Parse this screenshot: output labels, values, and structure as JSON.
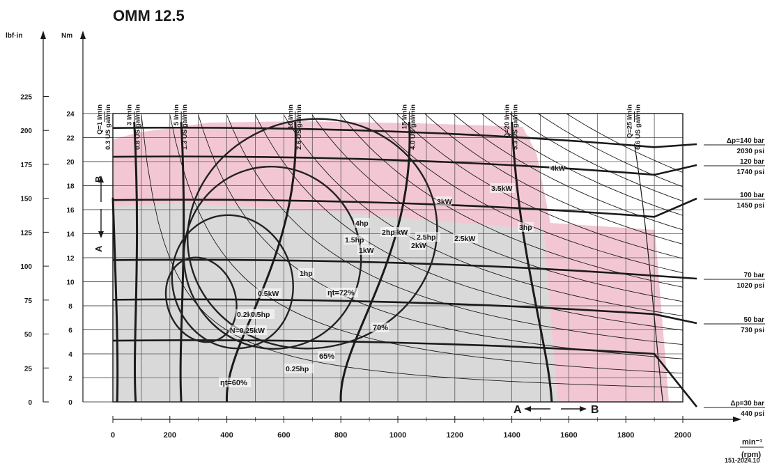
{
  "title": "OMM 12.5",
  "doc_number": "151-2024.10",
  "colors": {
    "region_pink": "#f2c7d3",
    "region_grey": "#d9d9d9",
    "ink": "#1a1a1a",
    "efficiency_line": "#222222"
  },
  "left_axis": {
    "unit": "lbf·in",
    "ticks": [
      "0",
      "25",
      "50",
      "75",
      "100",
      "125",
      "150",
      "175",
      "200",
      "225"
    ]
  },
  "torque_axis": {
    "unit": "Nm",
    "ticks": [
      "0",
      "2",
      "4",
      "6",
      "8",
      "10",
      "12",
      "14",
      "16",
      "18",
      "20",
      "22",
      "24"
    ]
  },
  "speed_axis": {
    "unit_top": "min⁻¹",
    "unit_bottom": "(rpm)",
    "ticks": [
      "0",
      "200",
      "400",
      "600",
      "800",
      "1000",
      "1200",
      "1400",
      "1600",
      "1800",
      "2000"
    ]
  },
  "flow_lines": [
    {
      "top": "Q=1 l/min",
      "bottom": "0.3 US gal/min"
    },
    {
      "top": "3 l/min",
      "bottom": "0.8 US gal/min"
    },
    {
      "top": "5 l/min",
      "bottom": "1.3 US gal/min"
    },
    {
      "top": "10 l/min",
      "bottom": "2.6 US gal/min"
    },
    {
      "top": "15 l/min",
      "bottom": "4.0 US gal/min"
    },
    {
      "top": "Q=20 l/min",
      "bottom": "5.3 US gal/min"
    },
    {
      "top": "Q=25 l/min",
      "bottom": "6.6 US gal/min"
    }
  ],
  "pressure_lines": [
    {
      "bar": "Δp=140 bar",
      "psi": "2030 psi"
    },
    {
      "bar": "120 bar",
      "psi": "1740 psi"
    },
    {
      "bar": "100 bar",
      "psi": "1450 psi"
    },
    {
      "bar": "70 bar",
      "psi": "1020 psi"
    },
    {
      "bar": "50 bar",
      "psi": "730 psi"
    },
    {
      "bar": "Δp=30 bar",
      "psi": "440 psi"
    }
  ],
  "power_labels": [
    "4kW",
    "3.5kW",
    "3kW",
    "2.5kW",
    "2kW",
    "1.5kW",
    "1kW",
    "0.5kW",
    "0.2kW",
    "4hp",
    "3hp",
    "2.5hp",
    "2hp",
    "1.5hp",
    "1hp",
    "0.5hp",
    "0.25hp",
    "N=0.25kW"
  ],
  "efficiency_labels": [
    "ηt=72%",
    "70%",
    "65%",
    "ηt=60%"
  ],
  "region_labels": {
    "a": "A",
    "b": "B"
  }
}
